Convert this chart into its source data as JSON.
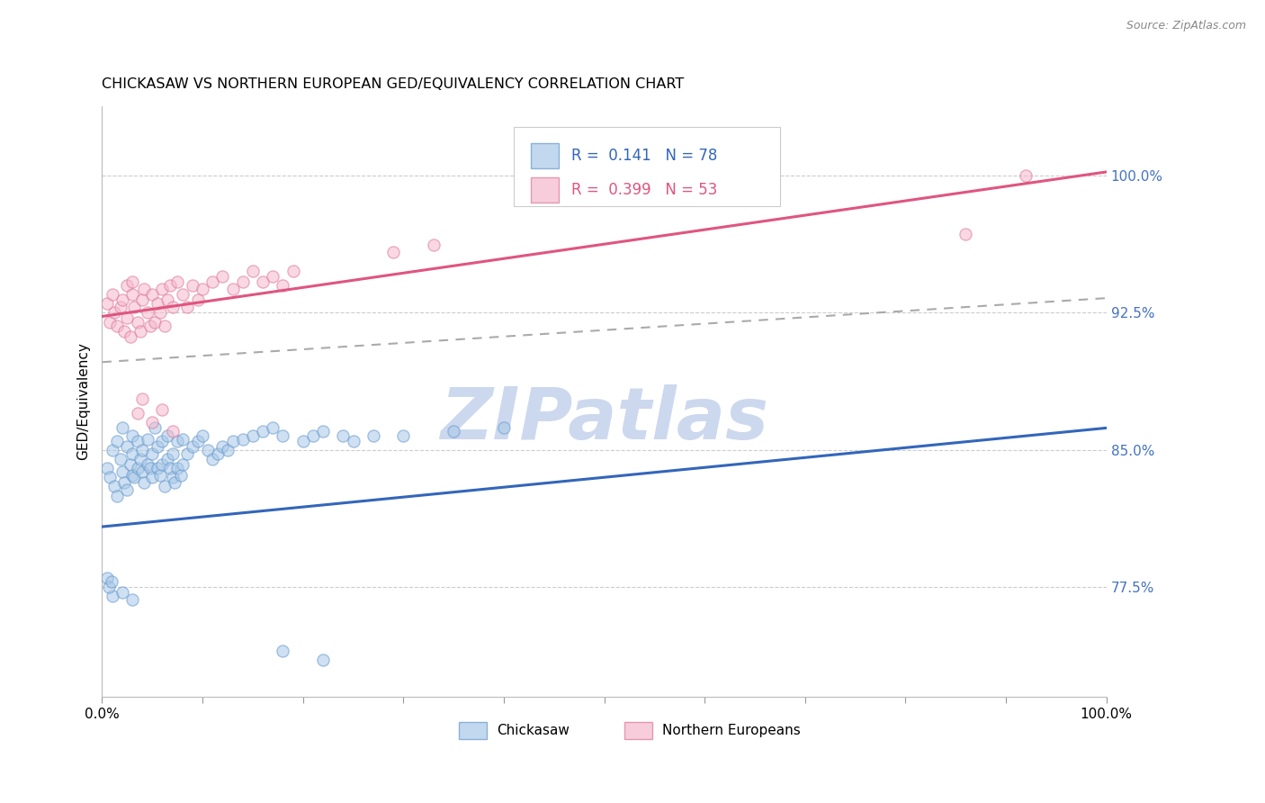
{
  "title": "CHICKASAW VS NORTHERN EUROPEAN GED/EQUIVALENCY CORRELATION CHART",
  "source": "Source: ZipAtlas.com",
  "ylabel": "GED/Equivalency",
  "xlim": [
    0.0,
    1.0
  ],
  "ylim": [
    0.715,
    1.038
  ],
  "ytick_vals": [
    0.775,
    0.85,
    0.925,
    1.0
  ],
  "ytick_labels": [
    "77.5%",
    "85.0%",
    "92.5%",
    "100.0%"
  ],
  "xtick_vals": [
    0.0,
    0.1,
    0.2,
    0.3,
    0.4,
    0.5,
    0.6,
    0.7,
    0.8,
    0.9,
    1.0
  ],
  "blue_scatter_color": "#a8c8e8",
  "blue_scatter_edge": "#6699cc",
  "pink_scatter_color": "#f5b8cc",
  "pink_scatter_edge": "#dd7799",
  "blue_line_color": "#3366bb",
  "pink_line_color": "#e05580",
  "dashed_line_color": "#aaaaaa",
  "watermark": "ZIPatlas",
  "watermark_color": "#ccd8ee",
  "title_fontsize": 11.5,
  "R_blue": 0.141,
  "N_blue": 78,
  "R_pink": 0.399,
  "N_pink": 53,
  "blue_trend": [
    0.0,
    1.0,
    0.808,
    0.862
  ],
  "pink_trend": [
    0.0,
    1.0,
    0.923,
    1.002
  ],
  "dashed_trend": [
    0.0,
    1.0,
    0.898,
    0.933
  ],
  "tick_color": "#4472c4",
  "grid_color": "#cccccc",
  "ytick_label_fontsize": 11,
  "legend_r1_vals": "R =  0.141   N = 78",
  "legend_r2_vals": "R =  0.399   N = 53",
  "chickasaw_x": [
    0.005,
    0.008,
    0.01,
    0.012,
    0.015,
    0.015,
    0.018,
    0.02,
    0.02,
    0.022,
    0.025,
    0.025,
    0.028,
    0.03,
    0.03,
    0.03,
    0.032,
    0.035,
    0.035,
    0.038,
    0.04,
    0.04,
    0.042,
    0.045,
    0.045,
    0.048,
    0.05,
    0.05,
    0.052,
    0.055,
    0.055,
    0.058,
    0.06,
    0.06,
    0.062,
    0.065,
    0.065,
    0.068,
    0.07,
    0.07,
    0.072,
    0.075,
    0.075,
    0.078,
    0.08,
    0.08,
    0.085,
    0.09,
    0.095,
    0.1,
    0.105,
    0.11,
    0.115,
    0.12,
    0.125,
    0.13,
    0.14,
    0.15,
    0.16,
    0.17,
    0.18,
    0.2,
    0.21,
    0.22,
    0.24,
    0.25,
    0.27,
    0.3,
    0.35,
    0.4,
    0.01,
    0.02,
    0.03,
    0.18,
    0.22,
    0.005,
    0.007,
    0.009
  ],
  "chickasaw_y": [
    0.84,
    0.835,
    0.85,
    0.83,
    0.825,
    0.855,
    0.845,
    0.838,
    0.862,
    0.832,
    0.828,
    0.852,
    0.842,
    0.836,
    0.848,
    0.858,
    0.835,
    0.84,
    0.855,
    0.845,
    0.838,
    0.85,
    0.832,
    0.842,
    0.856,
    0.84,
    0.835,
    0.848,
    0.862,
    0.84,
    0.852,
    0.836,
    0.842,
    0.855,
    0.83,
    0.845,
    0.858,
    0.84,
    0.835,
    0.848,
    0.832,
    0.84,
    0.855,
    0.836,
    0.842,
    0.856,
    0.848,
    0.852,
    0.855,
    0.858,
    0.85,
    0.845,
    0.848,
    0.852,
    0.85,
    0.855,
    0.856,
    0.858,
    0.86,
    0.862,
    0.858,
    0.855,
    0.858,
    0.86,
    0.858,
    0.855,
    0.858,
    0.858,
    0.86,
    0.862,
    0.77,
    0.772,
    0.768,
    0.74,
    0.735,
    0.78,
    0.775,
    0.778
  ],
  "northern_x": [
    0.005,
    0.008,
    0.01,
    0.012,
    0.015,
    0.018,
    0.02,
    0.022,
    0.025,
    0.025,
    0.028,
    0.03,
    0.03,
    0.032,
    0.035,
    0.038,
    0.04,
    0.042,
    0.045,
    0.048,
    0.05,
    0.052,
    0.055,
    0.058,
    0.06,
    0.062,
    0.065,
    0.068,
    0.07,
    0.075,
    0.08,
    0.085,
    0.09,
    0.095,
    0.1,
    0.11,
    0.12,
    0.13,
    0.14,
    0.15,
    0.16,
    0.17,
    0.18,
    0.19,
    0.035,
    0.04,
    0.05,
    0.06,
    0.07,
    0.29,
    0.33,
    0.86,
    0.92
  ],
  "northern_y": [
    0.93,
    0.92,
    0.935,
    0.925,
    0.918,
    0.928,
    0.932,
    0.915,
    0.94,
    0.922,
    0.912,
    0.935,
    0.942,
    0.928,
    0.92,
    0.915,
    0.932,
    0.938,
    0.925,
    0.918,
    0.935,
    0.92,
    0.93,
    0.925,
    0.938,
    0.918,
    0.932,
    0.94,
    0.928,
    0.942,
    0.935,
    0.928,
    0.94,
    0.932,
    0.938,
    0.942,
    0.945,
    0.938,
    0.942,
    0.948,
    0.942,
    0.945,
    0.94,
    0.948,
    0.87,
    0.878,
    0.865,
    0.872,
    0.86,
    0.958,
    0.962,
    0.968,
    1.0
  ]
}
